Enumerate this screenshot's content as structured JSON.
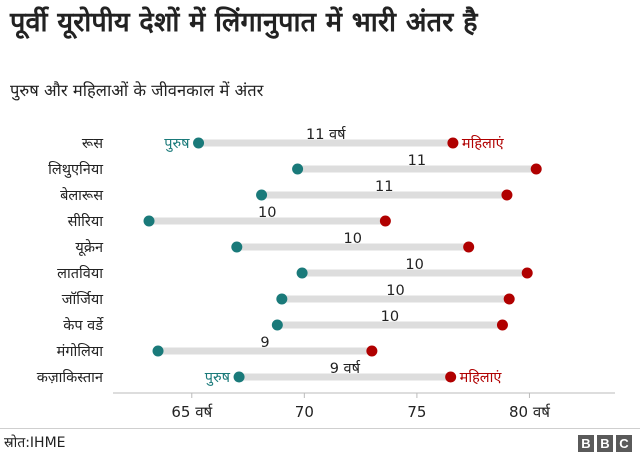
{
  "title": "पूर्वी यूरोपीय देशों में लिंगानुपात में भारी अंतर है",
  "subtitle": "पुरुष और महिलाओं के जीवनकाल में अंतर",
  "source": "स्रोत:IHME",
  "brand": [
    "B",
    "B",
    "C"
  ],
  "colors": {
    "male": "#1a7a7a",
    "female": "#b00000",
    "bar": "#dddddd",
    "text": "#222222"
  },
  "chart_data": {
    "type": "dumbbell",
    "xlim": [
      61.5,
      83.8
    ],
    "series": [
      {
        "name": "पुरुष",
        "color": "#1a7a7a"
      },
      {
        "name": "महिलाएं",
        "color": "#b00000"
      }
    ],
    "rows": [
      {
        "country": "रूस",
        "male": 65.3,
        "female": 76.6,
        "gap_label": "11 वर्ष",
        "show_series_labels": true
      },
      {
        "country": "लिथुएनिया",
        "male": 69.7,
        "female": 80.3,
        "gap_label": "11",
        "show_series_labels": false
      },
      {
        "country": "बेलारूस",
        "male": 68.1,
        "female": 79.0,
        "gap_label": "11",
        "show_series_labels": false
      },
      {
        "country": "सीरिया",
        "male": 63.1,
        "female": 73.6,
        "gap_label": "10",
        "show_series_labels": false
      },
      {
        "country": "यूक्रेन",
        "male": 67.0,
        "female": 77.3,
        "gap_label": "10",
        "show_series_labels": false
      },
      {
        "country": "लातविया",
        "male": 69.9,
        "female": 79.9,
        "gap_label": "10",
        "show_series_labels": false
      },
      {
        "country": "जॉर्जिया",
        "male": 69.0,
        "female": 79.1,
        "gap_label": "10",
        "show_series_labels": false
      },
      {
        "country": "केप वर्डे",
        "male": 68.8,
        "female": 78.8,
        "gap_label": "10",
        "show_series_labels": false
      },
      {
        "country": "मंगोलिया",
        "male": 63.5,
        "female": 73.0,
        "gap_label": "9",
        "show_series_labels": false
      },
      {
        "country": "कज़ाकिस्तान",
        "male": 67.1,
        "female": 76.5,
        "gap_label": "9 वर्ष",
        "show_series_labels": true
      }
    ],
    "x_ticks": [
      {
        "value": 65,
        "label": "65 वर्ष"
      },
      {
        "value": 70,
        "label": "70"
      },
      {
        "value": 75,
        "label": "75"
      },
      {
        "value": 80,
        "label": "80 वर्ष"
      }
    ],
    "xlabel": "",
    "ylabel": ""
  }
}
